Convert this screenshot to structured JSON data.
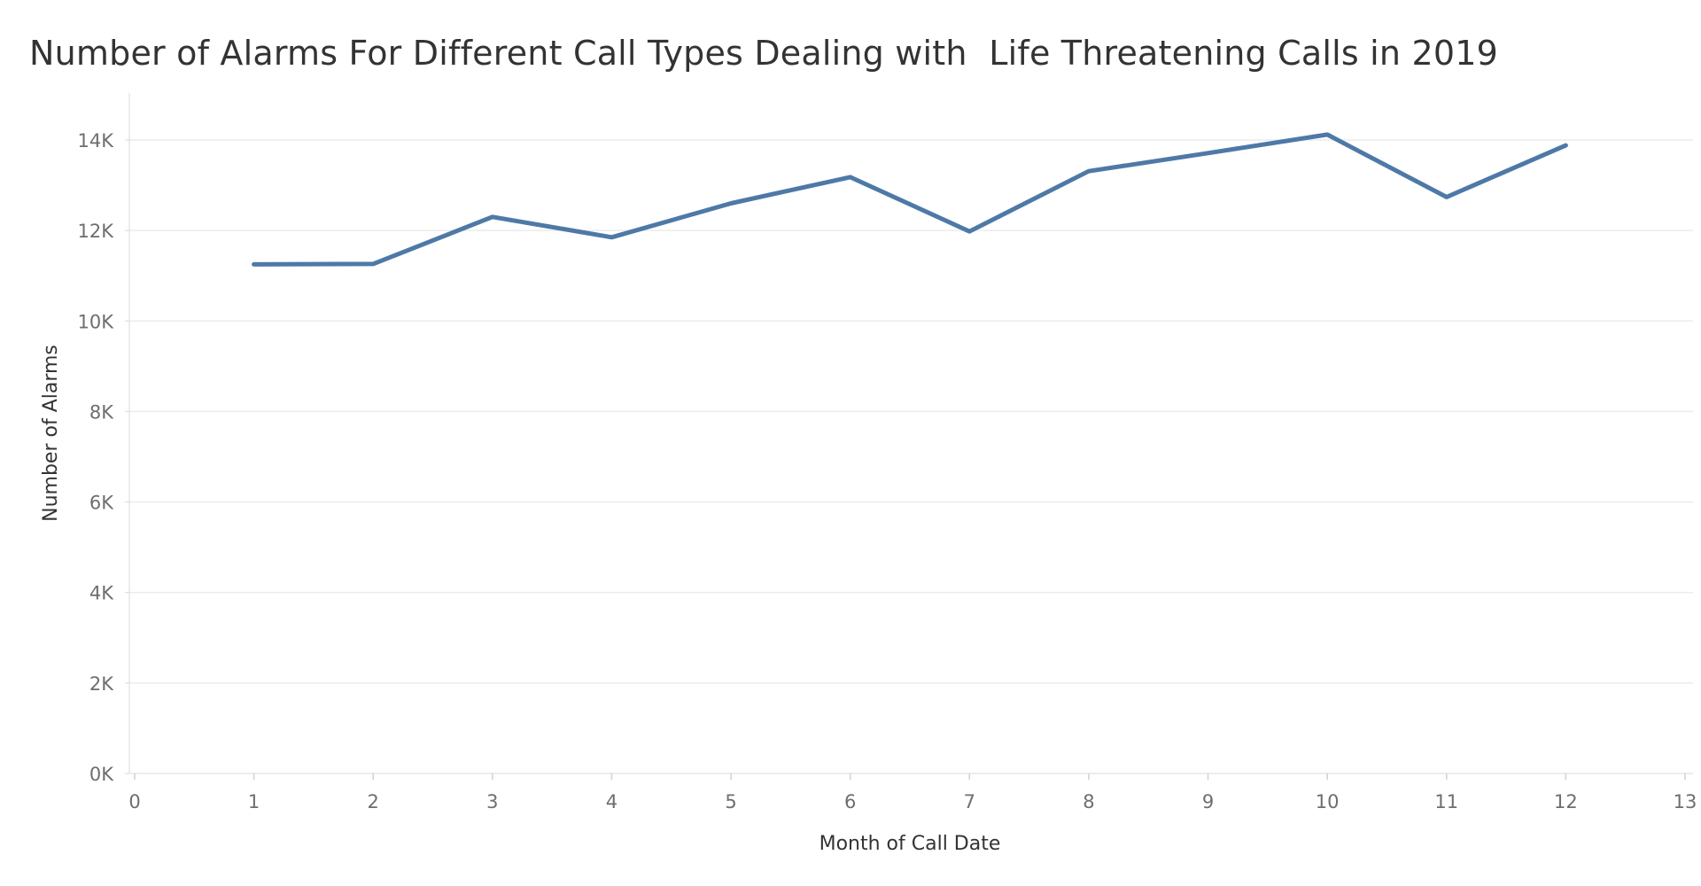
{
  "chart_data": {
    "type": "line",
    "title": "Number of Alarms For Different Call Types Dealing with  Life Threatening Calls in 2019",
    "xlabel": "Month of Call Date",
    "ylabel": "Number of Alarms",
    "xlim": [
      0,
      13
    ],
    "ylim": [
      0,
      14800
    ],
    "x_ticks": [
      0,
      1,
      2,
      3,
      4,
      5,
      6,
      7,
      8,
      9,
      10,
      11,
      12,
      13
    ],
    "x_tick_labels": [
      "0",
      "1",
      "2",
      "3",
      "4",
      "5",
      "6",
      "7",
      "8",
      "9",
      "10",
      "11",
      "12",
      "13"
    ],
    "y_ticks": [
      0,
      2000,
      4000,
      6000,
      8000,
      10000,
      12000,
      14000
    ],
    "y_tick_labels": [
      "0K",
      "2K",
      "4K",
      "6K",
      "8K",
      "10K",
      "12K",
      "14K"
    ],
    "grid": true,
    "series": [
      {
        "name": "Number of Alarms",
        "color": "#4e79a7",
        "x": [
          1,
          2,
          3,
          4,
          5,
          6,
          7,
          8,
          9,
          10,
          11,
          12
        ],
        "values": [
          11250,
          11260,
          12300,
          11850,
          12600,
          13180,
          11980,
          13310,
          13710,
          14120,
          12740,
          13880
        ]
      }
    ]
  }
}
